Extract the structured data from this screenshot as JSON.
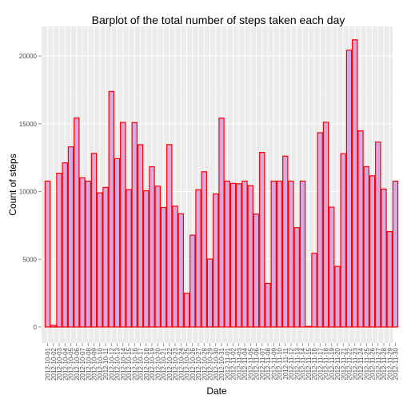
{
  "chart_data": {
    "type": "bar",
    "title": "Barplot of the total number of steps taken each day",
    "xlabel": "Date",
    "ylabel": "Count of steps",
    "ylim": [
      0,
      21800
    ],
    "yticks": [
      0,
      5000,
      10000,
      15000,
      20000
    ],
    "grid": true,
    "colors": {
      "panel": "#ebebeb",
      "grid": "#ffffff",
      "bar_fill": "#d8a8de",
      "bar_stroke": "#ff0000",
      "text": "#4d4d4d"
    },
    "categories": [
      "2012-10-01",
      "2012-10-02",
      "2012-10-03",
      "2012-10-04",
      "2012-10-05",
      "2012-10-06",
      "2012-10-07",
      "2012-10-08",
      "2012-10-09",
      "2012-10-10",
      "2012-10-11",
      "2012-10-12",
      "2012-10-13",
      "2012-10-14",
      "2012-10-15",
      "2012-10-16",
      "2012-10-17",
      "2012-10-18",
      "2012-10-19",
      "2012-10-20",
      "2012-10-21",
      "2012-10-22",
      "2012-10-23",
      "2012-10-24",
      "2012-10-25",
      "2012-10-26",
      "2012-10-27",
      "2012-10-28",
      "2012-10-29",
      "2012-10-30",
      "2012-10-31",
      "2012-11-01",
      "2012-11-02",
      "2012-11-03",
      "2012-11-04",
      "2012-11-05",
      "2012-11-06",
      "2012-11-07",
      "2012-11-08",
      "2012-11-09",
      "2012-11-10",
      "2012-11-11",
      "2012-11-12",
      "2012-11-13",
      "2012-11-14",
      "2012-11-15",
      "2012-11-16",
      "2012-11-17",
      "2012-11-18",
      "2012-11-19",
      "2012-11-20",
      "2012-11-21",
      "2012-11-22",
      "2012-11-23",
      "2012-11-24",
      "2012-11-25",
      "2012-11-26",
      "2012-11-27",
      "2012-11-28",
      "2012-11-29",
      "2012-11-30"
    ],
    "values": [
      10766,
      126,
      11352,
      12116,
      13294,
      15420,
      11015,
      10766,
      12811,
      9900,
      10304,
      17382,
      12426,
      15098,
      10139,
      15084,
      13452,
      10056,
      11829,
      10395,
      8821,
      13460,
      8918,
      8355,
      2492,
      6778,
      10119,
      11458,
      5018,
      9819,
      15414,
      10766,
      10600,
      10571,
      10766,
      10439,
      8334,
      12883,
      3219,
      10766,
      10766,
      12608,
      10765,
      7336,
      10766,
      41,
      5441,
      14339,
      15110,
      8841,
      4472,
      12787,
      20427,
      21194,
      14478,
      11834,
      11162,
      13646,
      10183,
      7047,
      10766
    ]
  }
}
